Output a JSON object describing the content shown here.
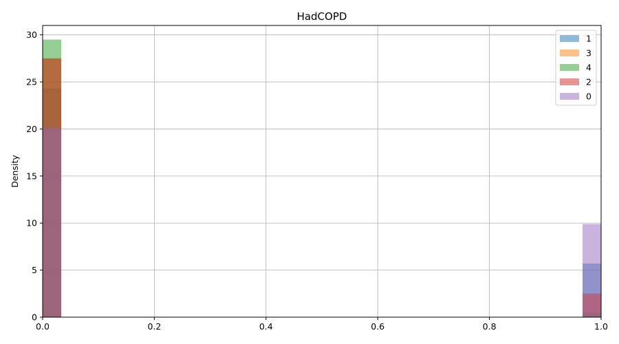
{
  "chart_data": {
    "type": "bar",
    "subtype": "overlaid-histogram",
    "title": "HadCOPD",
    "xlabel": "",
    "ylabel": "Density",
    "xlim": [
      0,
      1
    ],
    "ylim": [
      0,
      31
    ],
    "xticks": [
      "0.0",
      "0.2",
      "0.4",
      "0.6",
      "0.8",
      "1.0"
    ],
    "yticks": [
      "0",
      "5",
      "10",
      "15",
      "20",
      "25",
      "30"
    ],
    "grid": true,
    "legend_position": "top-right",
    "bin_width": 0.0333,
    "bar_opacity": 0.5,
    "series": [
      {
        "name": "1",
        "color": "#1f77b4",
        "bins": [
          {
            "x": 0,
            "density": 24.3
          },
          {
            "x": 0.9667,
            "density": 5.7
          }
        ]
      },
      {
        "name": "3",
        "color": "#ff7f0e",
        "bins": [
          {
            "x": 0,
            "density": 27.5
          },
          {
            "x": 0.9667,
            "density": 2.5
          }
        ]
      },
      {
        "name": "4",
        "color": "#2ca02c",
        "bins": [
          {
            "x": 0,
            "density": 29.5
          },
          {
            "x": 0.9667,
            "density": 0.5
          }
        ]
      },
      {
        "name": "2",
        "color": "#d62728",
        "bins": [
          {
            "x": 0,
            "density": 27.5
          },
          {
            "x": 0.9667,
            "density": 2.5
          }
        ]
      },
      {
        "name": "0",
        "color": "#9467bd",
        "bins": [
          {
            "x": 0,
            "density": 20.1
          },
          {
            "x": 0.9667,
            "density": 9.9
          }
        ]
      }
    ]
  }
}
